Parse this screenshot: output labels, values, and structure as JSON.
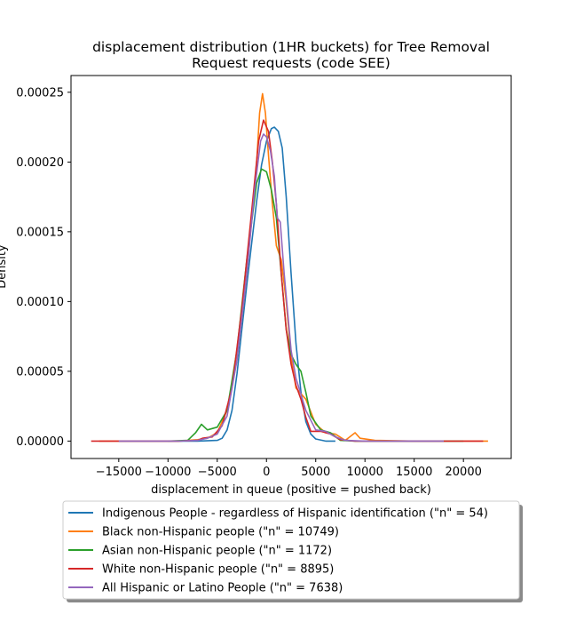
{
  "chart_data": {
    "type": "line",
    "title": "displacement distribution (1HR buckets) for Tree Removal\nRequest requests (code SEE)",
    "xlabel": "displacement in queue (positive = pushed back)",
    "ylabel": "Density",
    "xlim": [
      -19850,
      24850
    ],
    "ylim": [
      -1.25e-05,
      0.000262
    ],
    "xticks": [
      -15000,
      -10000,
      -5000,
      0,
      5000,
      10000,
      15000,
      20000
    ],
    "xtick_labels": [
      "−15000",
      "−10000",
      "−5000",
      "0",
      "5000",
      "10000",
      "15000",
      "20000"
    ],
    "yticks": [
      0.0,
      5e-05,
      0.0001,
      0.00015,
      0.0002,
      0.00025
    ],
    "ytick_labels": [
      "0.00000",
      "0.00005",
      "0.00010",
      "0.00015",
      "0.00020",
      "0.00025"
    ],
    "legend_position": "below plot",
    "series": [
      {
        "name": "Indigenous People - regardless of Hispanic identification (\"n\" = 54)",
        "color": "#1f77b4",
        "points": [
          [
            -15000,
            0
          ],
          [
            -7000,
            0
          ],
          [
            -5000,
            5e-07
          ],
          [
            -4500,
            2e-06
          ],
          [
            -4000,
            8e-06
          ],
          [
            -3500,
            2.2e-05
          ],
          [
            -3000,
            4.8e-05
          ],
          [
            -2500,
            8e-05
          ],
          [
            -2000,
            0.000112
          ],
          [
            -1500,
            0.000142
          ],
          [
            -1000,
            0.000172
          ],
          [
            -500,
            0.000198
          ],
          [
            0,
            0.000215
          ],
          [
            500,
            0.000224
          ],
          [
            800,
            0.000225
          ],
          [
            1200,
            0.000222
          ],
          [
            1600,
            0.00021
          ],
          [
            2000,
            0.000175
          ],
          [
            2500,
            0.00012
          ],
          [
            3000,
            7e-05
          ],
          [
            3500,
            3.5e-05
          ],
          [
            4000,
            1.4e-05
          ],
          [
            4500,
            5e-06
          ],
          [
            5000,
            1.5e-06
          ],
          [
            6000,
            0
          ],
          [
            7000,
            0
          ]
        ]
      },
      {
        "name": "Black non-Hispanic people (\"n\" = 10749)",
        "color": "#ff7f0e",
        "points": [
          [
            -17000,
            0
          ],
          [
            -9000,
            0
          ],
          [
            -7000,
            1e-06
          ],
          [
            -6500,
            1.5e-06
          ],
          [
            -6000,
            2e-06
          ],
          [
            -5000,
            6e-06
          ],
          [
            -4000,
            2.2e-05
          ],
          [
            -3000,
            5.8e-05
          ],
          [
            -2000,
            0.00012
          ],
          [
            -1500,
            0.00016
          ],
          [
            -1000,
            0.0002
          ],
          [
            -700,
            0.000235
          ],
          [
            -400,
            0.000249
          ],
          [
            -100,
            0.000235
          ],
          [
            200,
            0.000205
          ],
          [
            600,
            0.00017
          ],
          [
            1000,
            0.00014
          ],
          [
            1500,
            0.00013
          ],
          [
            2000,
            0.0001
          ],
          [
            2500,
            6e-05
          ],
          [
            3000,
            3.8e-05
          ],
          [
            4000,
            3e-05
          ],
          [
            5000,
            1.2e-05
          ],
          [
            6000,
            6e-06
          ],
          [
            7000,
            5e-06
          ],
          [
            8000,
            5e-07
          ],
          [
            9000,
            6e-06
          ],
          [
            9500,
            2e-06
          ],
          [
            11000,
            5e-07
          ],
          [
            15000,
            0
          ],
          [
            22500,
            0
          ]
        ]
      },
      {
        "name": "Asian non-Hispanic people (\"n\" = 1172)",
        "color": "#2ca02c",
        "points": [
          [
            -10000,
            0
          ],
          [
            -8000,
            5e-07
          ],
          [
            -7200,
            6e-06
          ],
          [
            -6600,
            1.2e-05
          ],
          [
            -6000,
            8e-06
          ],
          [
            -5000,
            1e-05
          ],
          [
            -4000,
            2.2e-05
          ],
          [
            -3000,
            6.5e-05
          ],
          [
            -2000,
            0.00013
          ],
          [
            -1000,
            0.000185
          ],
          [
            -500,
            0.000195
          ],
          [
            0,
            0.000193
          ],
          [
            500,
            0.00018
          ],
          [
            1000,
            0.00016
          ],
          [
            1500,
            0.00012
          ],
          [
            2000,
            8e-05
          ],
          [
            2500,
            6.2e-05
          ],
          [
            3000,
            5.5e-05
          ],
          [
            3500,
            5e-05
          ],
          [
            4000,
            3.5e-05
          ],
          [
            4500,
            1.8e-05
          ],
          [
            5500,
            8e-06
          ],
          [
            6500,
            6e-06
          ],
          [
            7500,
            5e-07
          ],
          [
            9000,
            0
          ],
          [
            20000,
            0
          ]
        ]
      },
      {
        "name": "White non-Hispanic people (\"n\" = 8895)",
        "color": "#d62728",
        "points": [
          [
            -17800,
            0
          ],
          [
            -9000,
            0
          ],
          [
            -7000,
            5e-07
          ],
          [
            -6500,
            2e-06
          ],
          [
            -5500,
            3e-06
          ],
          [
            -4500,
            1.1e-05
          ],
          [
            -3500,
            3.8e-05
          ],
          [
            -2500,
            9.5e-05
          ],
          [
            -1500,
            0.000165
          ],
          [
            -800,
            0.000215
          ],
          [
            -300,
            0.00023
          ],
          [
            200,
            0.000222
          ],
          [
            600,
            0.0002
          ],
          [
            1000,
            0.00017
          ],
          [
            1500,
            0.00012
          ],
          [
            2000,
            8e-05
          ],
          [
            2500,
            5.5e-05
          ],
          [
            3000,
            4e-05
          ],
          [
            3500,
            3e-05
          ],
          [
            4000,
            1.7e-05
          ],
          [
            4500,
            7e-06
          ],
          [
            5500,
            7e-06
          ],
          [
            6500,
            5e-06
          ],
          [
            7500,
            1e-06
          ],
          [
            9000,
            0
          ],
          [
            22000,
            0
          ]
        ]
      },
      {
        "name": "All Hispanic or Latino People (\"n\" = 7638)",
        "color": "#9467bd",
        "points": [
          [
            -15000,
            0
          ],
          [
            -9000,
            0
          ],
          [
            -7000,
            5e-07
          ],
          [
            -6000,
            2e-06
          ],
          [
            -5000,
            5e-06
          ],
          [
            -4000,
            1.8e-05
          ],
          [
            -3000,
            5.8e-05
          ],
          [
            -2000,
            0.00012
          ],
          [
            -1200,
            0.00018
          ],
          [
            -600,
            0.000215
          ],
          [
            -300,
            0.00022
          ],
          [
            0,
            0.000218
          ],
          [
            400,
            0.000208
          ],
          [
            800,
            0.00019
          ],
          [
            1100,
            0.00016
          ],
          [
            1400,
            0.000157
          ],
          [
            1800,
            0.00012
          ],
          [
            2500,
            6.5e-05
          ],
          [
            3000,
            4.5e-05
          ],
          [
            4000,
            2.2e-05
          ],
          [
            5000,
            8e-06
          ],
          [
            6000,
            7e-06
          ],
          [
            7000,
            3e-06
          ],
          [
            8000,
            5e-07
          ],
          [
            10000,
            0
          ],
          [
            18000,
            0
          ]
        ]
      }
    ]
  }
}
